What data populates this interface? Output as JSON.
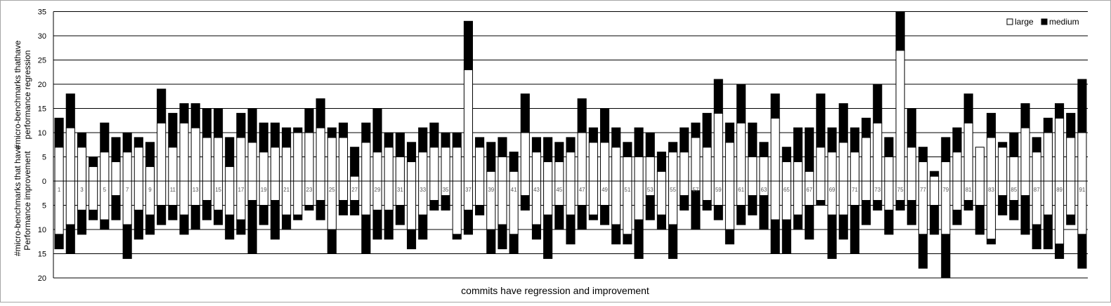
{
  "chart_data": {
    "type": "bar",
    "xlabel": "commits have regression and improvement",
    "ylabel_upper": [
      "#micro-benchmarks thathave",
      "performance regression"
    ],
    "ylabel_lower": [
      "#micro-benchmarks that have",
      "Performance improvement"
    ],
    "upper_ylim": [
      0,
      35
    ],
    "lower_ylim": [
      0,
      20
    ],
    "upper_ticks": [
      0,
      5,
      10,
      15,
      20,
      25,
      30,
      35
    ],
    "lower_ticks": [
      5,
      10,
      15,
      20
    ],
    "grid": true,
    "legend_position": "top-right",
    "series": [
      {
        "name": "large",
        "color": "#ffffff"
      },
      {
        "name": "medium",
        "color": "#000000"
      }
    ],
    "category_labels": [
      "1",
      "3",
      "5",
      "7",
      "9",
      "11",
      "13",
      "15",
      "17",
      "19",
      "21",
      "23",
      "25",
      "27",
      "29",
      "31",
      "33",
      "35",
      "37",
      "39",
      "41",
      "43",
      "45",
      "47",
      "49",
      "51",
      "53",
      "55",
      "57",
      "59",
      "61",
      "63",
      "65",
      "67",
      "69",
      "71",
      "73",
      "75",
      "77",
      "79",
      "81",
      "83",
      "85",
      "87",
      "89",
      "91"
    ],
    "commits": [
      {
        "id": 1,
        "reg_large": 7,
        "reg_medium": 6,
        "imp_large": 11,
        "imp_medium": 3
      },
      {
        "id": 2,
        "reg_large": 11,
        "reg_medium": 7,
        "imp_large": 9,
        "imp_medium": 6
      },
      {
        "id": 3,
        "reg_large": 7,
        "reg_medium": 3,
        "imp_large": 6,
        "imp_medium": 5
      },
      {
        "id": 4,
        "reg_large": 3,
        "reg_medium": 2,
        "imp_large": 6,
        "imp_medium": 2
      },
      {
        "id": 5,
        "reg_large": 6,
        "reg_medium": 6,
        "imp_large": 8,
        "imp_medium": 2
      },
      {
        "id": 6,
        "reg_large": 4,
        "reg_medium": 5,
        "imp_large": 3,
        "imp_medium": 5
      },
      {
        "id": 7,
        "reg_large": 6,
        "reg_medium": 4,
        "imp_large": 9,
        "imp_medium": 7
      },
      {
        "id": 8,
        "reg_large": 7,
        "reg_medium": 2,
        "imp_large": 6,
        "imp_medium": 6
      },
      {
        "id": 9,
        "reg_large": 3,
        "reg_medium": 5,
        "imp_large": 7,
        "imp_medium": 4
      },
      {
        "id": 10,
        "reg_large": 12,
        "reg_medium": 7,
        "imp_large": 5,
        "imp_medium": 4
      },
      {
        "id": 11,
        "reg_large": 7,
        "reg_medium": 7,
        "imp_large": 5,
        "imp_medium": 3
      },
      {
        "id": 12,
        "reg_large": 12,
        "reg_medium": 4,
        "imp_large": 7,
        "imp_medium": 4
      },
      {
        "id": 13,
        "reg_large": 11,
        "reg_medium": 5,
        "imp_large": 5,
        "imp_medium": 5
      },
      {
        "id": 14,
        "reg_large": 9,
        "reg_medium": 6,
        "imp_large": 4,
        "imp_medium": 4
      },
      {
        "id": 15,
        "reg_large": 9,
        "reg_medium": 6,
        "imp_large": 6,
        "imp_medium": 3
      },
      {
        "id": 16,
        "reg_large": 3,
        "reg_medium": 6,
        "imp_large": 7,
        "imp_medium": 5
      },
      {
        "id": 17,
        "reg_large": 9,
        "reg_medium": 5,
        "imp_large": 8,
        "imp_medium": 3
      },
      {
        "id": 18,
        "reg_large": 8,
        "reg_medium": 7,
        "imp_large": 4,
        "imp_medium": 11
      },
      {
        "id": 19,
        "reg_large": 6,
        "reg_medium": 6,
        "imp_large": 5,
        "imp_medium": 4
      },
      {
        "id": 20,
        "reg_large": 7,
        "reg_medium": 5,
        "imp_large": 4,
        "imp_medium": 8
      },
      {
        "id": 21,
        "reg_large": 7,
        "reg_medium": 4,
        "imp_large": 7,
        "imp_medium": 3
      },
      {
        "id": 22,
        "reg_large": 10,
        "reg_medium": 1,
        "imp_large": 7,
        "imp_medium": 1
      },
      {
        "id": 23,
        "reg_large": 10,
        "reg_medium": 5,
        "imp_large": 5,
        "imp_medium": 1
      },
      {
        "id": 24,
        "reg_large": 11,
        "reg_medium": 6,
        "imp_large": 4,
        "imp_medium": 4
      },
      {
        "id": 25,
        "reg_large": 9,
        "reg_medium": 2,
        "imp_large": 10,
        "imp_medium": 5
      },
      {
        "id": 26,
        "reg_large": 9,
        "reg_medium": 3,
        "imp_large": 4,
        "imp_medium": 3
      },
      {
        "id": 27,
        "reg_large": 1,
        "reg_medium": 6,
        "imp_large": 4,
        "imp_medium": 3
      },
      {
        "id": 28,
        "reg_large": 8,
        "reg_medium": 4,
        "imp_large": 7,
        "imp_medium": 8
      },
      {
        "id": 29,
        "reg_large": 6,
        "reg_medium": 9,
        "imp_large": 6,
        "imp_medium": 6
      },
      {
        "id": 30,
        "reg_large": 7,
        "reg_medium": 3,
        "imp_large": 6,
        "imp_medium": 6
      },
      {
        "id": 31,
        "reg_large": 5,
        "reg_medium": 5,
        "imp_large": 5,
        "imp_medium": 4
      },
      {
        "id": 32,
        "reg_large": 4,
        "reg_medium": 4,
        "imp_large": 10,
        "imp_medium": 4
      },
      {
        "id": 33,
        "reg_large": 6,
        "reg_medium": 5,
        "imp_large": 7,
        "imp_medium": 5
      },
      {
        "id": 34,
        "reg_large": 7,
        "reg_medium": 5,
        "imp_large": 4,
        "imp_medium": 2
      },
      {
        "id": 35,
        "reg_large": 7,
        "reg_medium": 3,
        "imp_large": 3,
        "imp_medium": 3
      },
      {
        "id": 36,
        "reg_large": 7,
        "reg_medium": 3,
        "imp_large": 11,
        "imp_medium": 1
      },
      {
        "id": 37,
        "reg_large": 23,
        "reg_medium": 10,
        "imp_large": 6,
        "imp_medium": 5
      },
      {
        "id": 38,
        "reg_large": 7,
        "reg_medium": 2,
        "imp_large": 5,
        "imp_medium": 2
      },
      {
        "id": 39,
        "reg_large": 2,
        "reg_medium": 6,
        "imp_large": 10,
        "imp_medium": 5
      },
      {
        "id": 40,
        "reg_large": 5,
        "reg_medium": 4,
        "imp_large": 9,
        "imp_medium": 5
      },
      {
        "id": 41,
        "reg_large": 2,
        "reg_medium": 4,
        "imp_large": 11,
        "imp_medium": 4
      },
      {
        "id": 42,
        "reg_large": 10,
        "reg_medium": 8,
        "imp_large": 3,
        "imp_medium": 3
      },
      {
        "id": 43,
        "reg_large": 6,
        "reg_medium": 3,
        "imp_large": 9,
        "imp_medium": 3
      },
      {
        "id": 44,
        "reg_large": 4,
        "reg_medium": 5,
        "imp_large": 7,
        "imp_medium": 9
      },
      {
        "id": 45,
        "reg_large": 4,
        "reg_medium": 4,
        "imp_large": 5,
        "imp_medium": 5
      },
      {
        "id": 46,
        "reg_large": 6,
        "reg_medium": 3,
        "imp_large": 7,
        "imp_medium": 6
      },
      {
        "id": 47,
        "reg_large": 10,
        "reg_medium": 7,
        "imp_large": 5,
        "imp_medium": 5
      },
      {
        "id": 48,
        "reg_large": 8,
        "reg_medium": 3,
        "imp_large": 7,
        "imp_medium": 1
      },
      {
        "id": 49,
        "reg_large": 8,
        "reg_medium": 7,
        "imp_large": 5,
        "imp_medium": 4
      },
      {
        "id": 50,
        "reg_large": 7,
        "reg_medium": 4,
        "imp_large": 9,
        "imp_medium": 4
      },
      {
        "id": 51,
        "reg_large": 5,
        "reg_medium": 3,
        "imp_large": 11,
        "imp_medium": 2
      },
      {
        "id": 52,
        "reg_large": 5,
        "reg_medium": 6,
        "imp_large": 8,
        "imp_medium": 8
      },
      {
        "id": 53,
        "reg_large": 5,
        "reg_medium": 5,
        "imp_large": 3,
        "imp_medium": 5
      },
      {
        "id": 54,
        "reg_large": 2,
        "reg_medium": 4,
        "imp_large": 7,
        "imp_medium": 3
      },
      {
        "id": 55,
        "reg_large": 6,
        "reg_medium": 2,
        "imp_large": 9,
        "imp_medium": 7
      },
      {
        "id": 56,
        "reg_large": 6,
        "reg_medium": 5,
        "imp_large": 3,
        "imp_medium": 3
      },
      {
        "id": 57,
        "reg_large": 9,
        "reg_medium": 3,
        "imp_large": 2,
        "imp_medium": 8
      },
      {
        "id": 58,
        "reg_large": 7,
        "reg_medium": 7,
        "imp_large": 4,
        "imp_medium": 2
      },
      {
        "id": 59,
        "reg_large": 14,
        "reg_medium": 7,
        "imp_large": 5,
        "imp_medium": 3
      },
      {
        "id": 60,
        "reg_large": 8,
        "reg_medium": 4,
        "imp_large": 10,
        "imp_medium": 3
      },
      {
        "id": 61,
        "reg_large": 12,
        "reg_medium": 8,
        "imp_large": 5,
        "imp_medium": 4
      },
      {
        "id": 62,
        "reg_large": 5,
        "reg_medium": 7,
        "imp_large": 3,
        "imp_medium": 4
      },
      {
        "id": 63,
        "reg_large": 5,
        "reg_medium": 3,
        "imp_large": 3,
        "imp_medium": 7
      },
      {
        "id": 64,
        "reg_large": 13,
        "reg_medium": 5,
        "imp_large": 8,
        "imp_medium": 7
      },
      {
        "id": 65,
        "reg_large": 4,
        "reg_medium": 3,
        "imp_large": 8,
        "imp_medium": 7
      },
      {
        "id": 66,
        "reg_large": 4,
        "reg_medium": 7,
        "imp_large": 7,
        "imp_medium": 3
      },
      {
        "id": 67,
        "reg_large": 2,
        "reg_medium": 9,
        "imp_large": 5,
        "imp_medium": 7
      },
      {
        "id": 68,
        "reg_large": 7,
        "reg_medium": 11,
        "imp_large": 4,
        "imp_medium": 1
      },
      {
        "id": 69,
        "reg_large": 6,
        "reg_medium": 5,
        "imp_large": 7,
        "imp_medium": 9
      },
      {
        "id": 70,
        "reg_large": 8,
        "reg_medium": 8,
        "imp_large": 7,
        "imp_medium": 5
      },
      {
        "id": 71,
        "reg_large": 6,
        "reg_medium": 5,
        "imp_large": 5,
        "imp_medium": 10
      },
      {
        "id": 72,
        "reg_large": 9,
        "reg_medium": 4,
        "imp_large": 4,
        "imp_medium": 5
      },
      {
        "id": 73,
        "reg_large": 12,
        "reg_medium": 8,
        "imp_large": 4,
        "imp_medium": 2
      },
      {
        "id": 74,
        "reg_large": 5,
        "reg_medium": 4,
        "imp_large": 6,
        "imp_medium": 5
      },
      {
        "id": 75,
        "reg_large": 27,
        "reg_medium": 8,
        "imp_large": 4,
        "imp_medium": 2
      },
      {
        "id": 76,
        "reg_large": 7,
        "reg_medium": 8,
        "imp_large": 4,
        "imp_medium": 5
      },
      {
        "id": 77,
        "reg_large": 4,
        "reg_medium": 3,
        "imp_large": 11,
        "imp_medium": 7
      },
      {
        "id": 78,
        "reg_large": 1,
        "reg_medium": 1,
        "imp_large": 5,
        "imp_medium": 6
      },
      {
        "id": 79,
        "reg_large": 4,
        "reg_medium": 5,
        "imp_large": 11,
        "imp_medium": 9
      },
      {
        "id": 80,
        "reg_large": 6,
        "reg_medium": 5,
        "imp_large": 6,
        "imp_medium": 3
      },
      {
        "id": 81,
        "reg_large": 12,
        "reg_medium": 6,
        "imp_large": 4,
        "imp_medium": 2
      },
      {
        "id": 82,
        "reg_large": 7,
        "reg_medium": 0,
        "imp_large": 5,
        "imp_medium": 6
      },
      {
        "id": 83,
        "reg_large": 9,
        "reg_medium": 5,
        "imp_large": 12,
        "imp_medium": 1
      },
      {
        "id": 84,
        "reg_large": 7,
        "reg_medium": 1,
        "imp_large": 3,
        "imp_medium": 4
      },
      {
        "id": 85,
        "reg_large": 5,
        "reg_medium": 5,
        "imp_large": 4,
        "imp_medium": 4
      },
      {
        "id": 86,
        "reg_large": 11,
        "reg_medium": 5,
        "imp_large": 3,
        "imp_medium": 8
      },
      {
        "id": 87,
        "reg_large": 6,
        "reg_medium": 3,
        "imp_large": 9,
        "imp_medium": 5
      },
      {
        "id": 88,
        "reg_large": 10,
        "reg_medium": 3,
        "imp_large": 7,
        "imp_medium": 7
      },
      {
        "id": 89,
        "reg_large": 13,
        "reg_medium": 3,
        "imp_large": 13,
        "imp_medium": 3
      },
      {
        "id": 90,
        "reg_large": 9,
        "reg_medium": 5,
        "imp_large": 7,
        "imp_medium": 2
      },
      {
        "id": 91,
        "reg_large": 10,
        "reg_medium": 11,
        "imp_large": 11,
        "imp_medium": 7
      }
    ]
  }
}
